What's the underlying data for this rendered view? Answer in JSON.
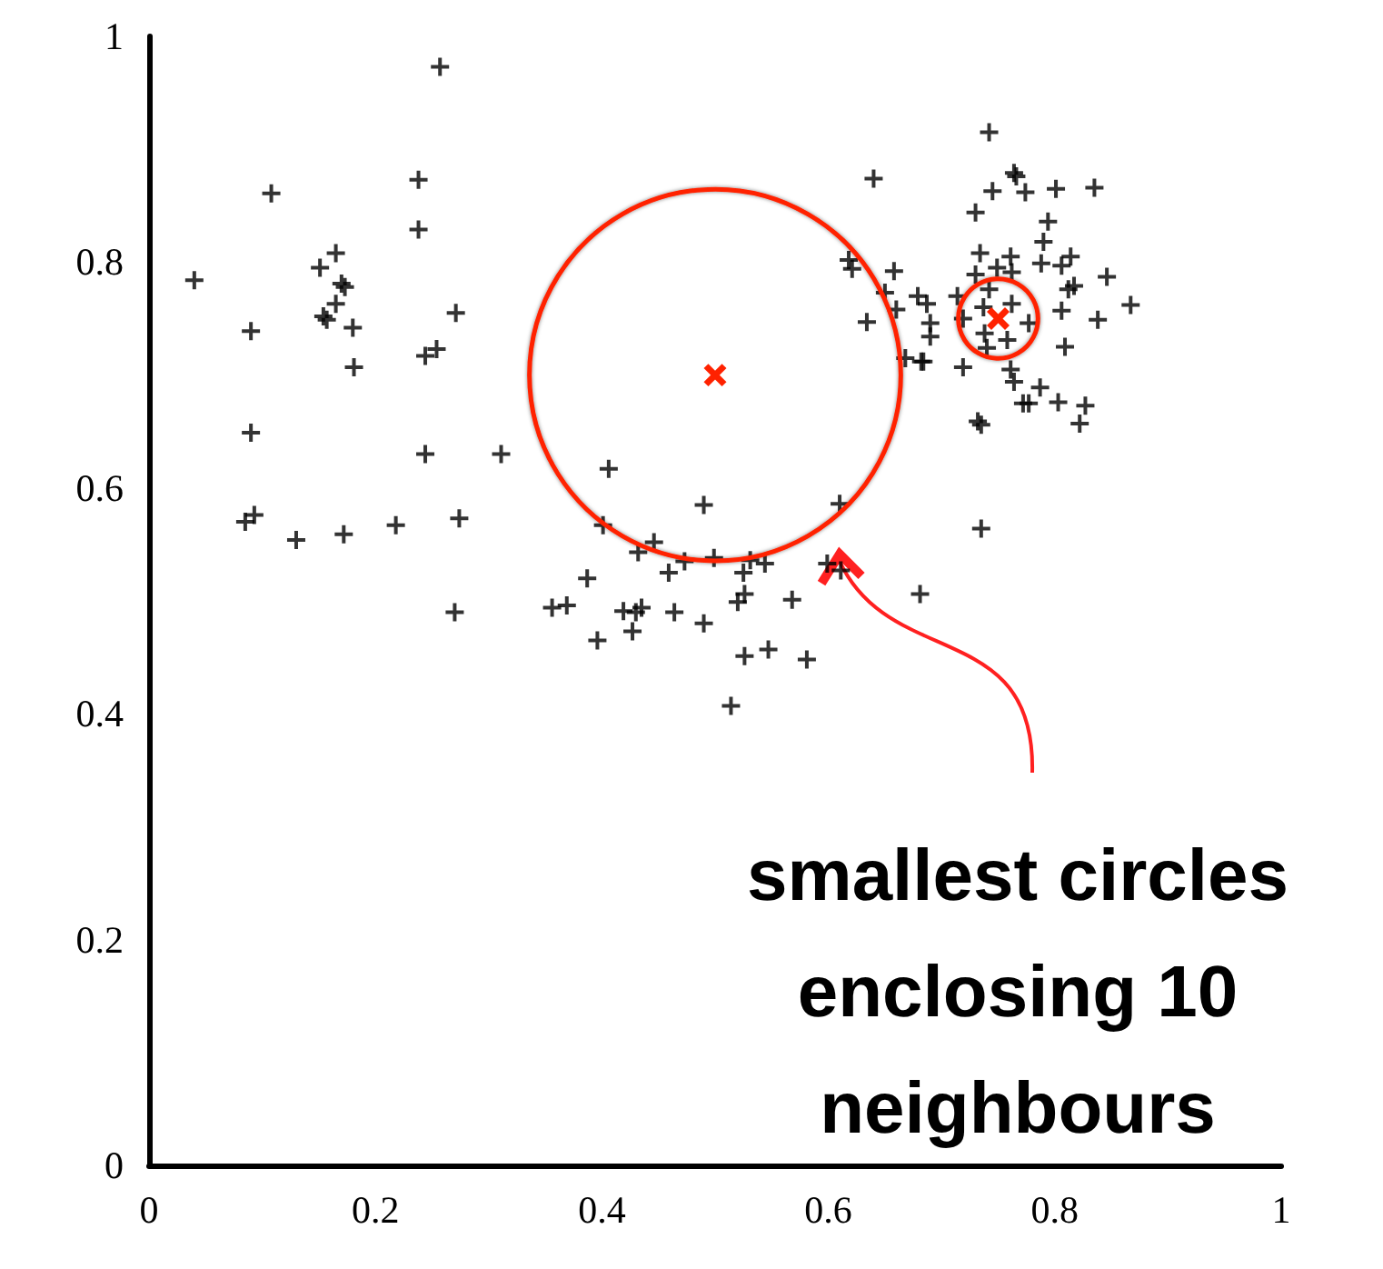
{
  "chart_data": {
    "type": "scatter",
    "xlim": [
      0,
      1
    ],
    "ylim": [
      0,
      1
    ],
    "xticks": [
      0,
      0.2,
      0.4,
      0.6,
      0.8,
      1
    ],
    "yticks": [
      0,
      0.2,
      0.4,
      0.6,
      0.8,
      1
    ],
    "grid": false,
    "marker": "cross",
    "annotations": [
      {
        "text": "smallest circles enclosing 10 neighbours",
        "x": 0.61,
        "y": 0.535
      }
    ],
    "series": [
      {
        "color": "#000000",
        "x": [
          0.257,
          0.108,
          0.238,
          0.238,
          0.04,
          0.165,
          0.151,
          0.17,
          0.173,
          0.165,
          0.154,
          0.157,
          0.18,
          0.09,
          0.271,
          0.254,
          0.244,
          0.181,
          0.09,
          0.244,
          0.311,
          0.093,
          0.085,
          0.13,
          0.172,
          0.218,
          0.274,
          0.27,
          0.64,
          0.618,
          0.621,
          0.658,
          0.65,
          0.66,
          0.634,
          0.679,
          0.668,
          0.682,
          0.406,
          0.49,
          0.61,
          0.401,
          0.446,
          0.432,
          0.473,
          0.499,
          0.531,
          0.544,
          0.459,
          0.525,
          0.599,
          0.611,
          0.387,
          0.356,
          0.369,
          0.419,
          0.435,
          0.43,
          0.464,
          0.427,
          0.49,
          0.526,
          0.52,
          0.568,
          0.396,
          0.526,
          0.547,
          0.581,
          0.514,
          0.681,
          0.742,
          0.764,
          0.766,
          0.745,
          0.774,
          0.801,
          0.835,
          0.73,
          0.794,
          0.79,
          0.734,
          0.761,
          0.814,
          0.788,
          0.806,
          0.73,
          0.762,
          0.749,
          0.846,
          0.817,
          0.812,
          0.742,
          0.714,
          0.687,
          0.69,
          0.69,
          0.867,
          0.762,
          0.737,
          0.806,
          0.838,
          0.719,
          0.777,
          0.738,
          0.758,
          0.74,
          0.809,
          0.684,
          0.719,
          0.761,
          0.764,
          0.787,
          0.772,
          0.777,
          0.803,
          0.827,
          0.822,
          0.732,
          0.735,
          0.735
        ],
        "values": [
          0.973,
          0.861,
          0.873,
          0.829,
          0.784,
          0.808,
          0.795,
          0.781,
          0.778,
          0.763,
          0.752,
          0.749,
          0.742,
          0.739,
          0.755,
          0.723,
          0.717,
          0.707,
          0.649,
          0.63,
          0.63,
          0.576,
          0.57,
          0.554,
          0.559,
          0.567,
          0.573,
          0.49,
          0.874,
          0.802,
          0.794,
          0.792,
          0.773,
          0.758,
          0.747,
          0.77,
          0.715,
          0.712,
          0.617,
          0.585,
          0.586,
          0.567,
          0.552,
          0.543,
          0.535,
          0.538,
          0.536,
          0.533,
          0.525,
          0.525,
          0.533,
          0.527,
          0.52,
          0.494,
          0.496,
          0.491,
          0.494,
          0.49,
          0.49,
          0.473,
          0.48,
          0.506,
          0.499,
          0.501,
          0.465,
          0.451,
          0.457,
          0.448,
          0.407,
          0.506,
          0.915,
          0.879,
          0.876,
          0.863,
          0.862,
          0.865,
          0.866,
          0.844,
          0.836,
          0.818,
          0.808,
          0.805,
          0.805,
          0.799,
          0.797,
          0.789,
          0.791,
          0.795,
          0.787,
          0.779,
          0.776,
          0.776,
          0.77,
          0.763,
          0.746,
          0.734,
          0.762,
          0.763,
          0.76,
          0.757,
          0.749,
          0.75,
          0.746,
          0.737,
          0.731,
          0.724,
          0.725,
          0.712,
          0.707,
          0.705,
          0.694,
          0.689,
          0.675,
          0.675,
          0.676,
          0.673,
          0.657,
          0.659,
          0.656,
          0.564
        ]
      },
      {
        "type": "bubble",
        "color": "#ff2200",
        "x": [
          0.5,
          0.75
        ],
        "values": [
          0.7,
          0.75
        ],
        "sizes": [
          1,
          0.046
        ]
      }
    ]
  }
}
